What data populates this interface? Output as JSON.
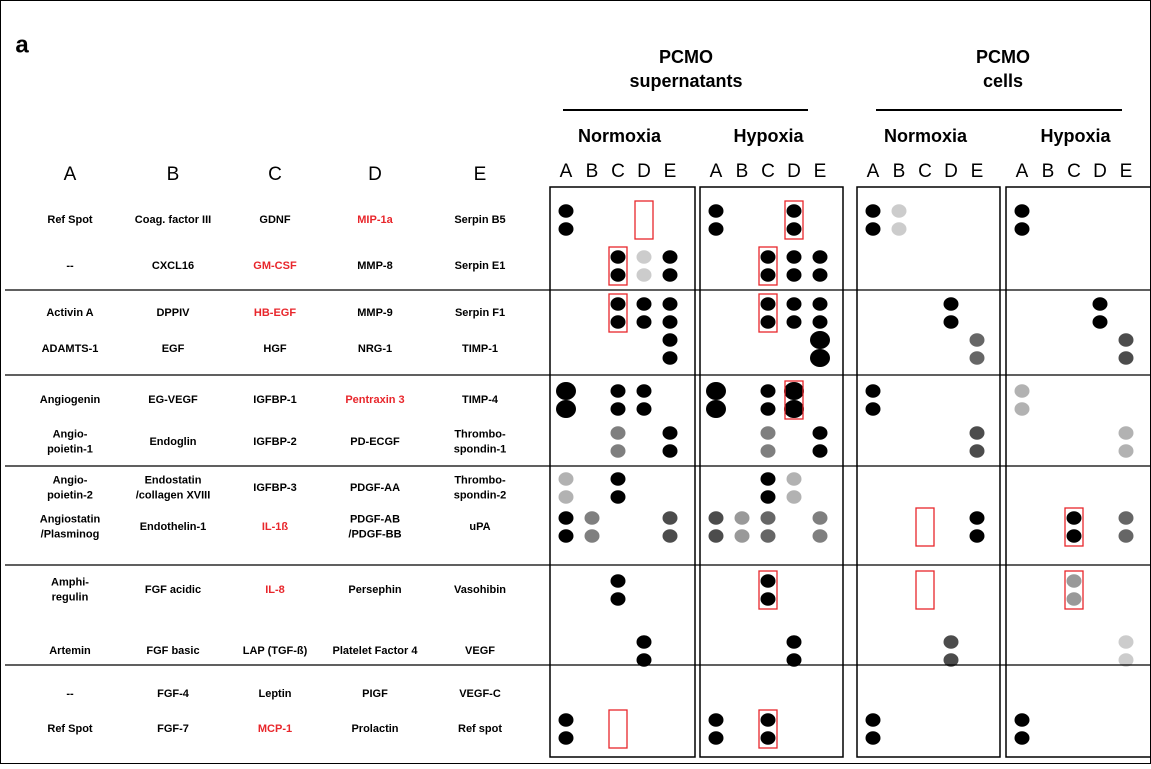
{
  "panel_label": "a",
  "groups": [
    {
      "title_lines": [
        "PCMO",
        "supernatants"
      ],
      "conditions": [
        "Normoxia",
        "Hypoxia"
      ]
    },
    {
      "title_lines": [
        "PCMO",
        "cells"
      ],
      "conditions": [
        "Normoxia",
        "Hypoxia"
      ]
    }
  ],
  "columns": [
    "A",
    "B",
    "C",
    "D",
    "E"
  ],
  "table": {
    "rows": [
      [
        [
          "Ref Spot"
        ],
        [
          "Coag. factor III"
        ],
        [
          "GDNF"
        ],
        [
          "MIP-1a"
        ],
        [
          "Serpin B5"
        ]
      ],
      [
        [
          "--"
        ],
        [
          "CXCL16"
        ],
        [
          "GM-CSF"
        ],
        [
          "MMP-8"
        ],
        [
          "Serpin E1"
        ]
      ],
      [
        [
          "Activin A"
        ],
        [
          "DPPIV"
        ],
        [
          "HB-EGF"
        ],
        [
          "MMP-9"
        ],
        [
          "Serpin F1"
        ]
      ],
      [
        [
          "ADAMTS-1"
        ],
        [
          "EGF"
        ],
        [
          "HGF"
        ],
        [
          "NRG-1"
        ],
        [
          "TIMP-1"
        ]
      ],
      [
        [
          "Angiogenin"
        ],
        [
          "EG-VEGF"
        ],
        [
          "IGFBP-1"
        ],
        [
          "Pentraxin 3"
        ],
        [
          "TIMP-4"
        ]
      ],
      [
        [
          "Angio-",
          "poietin-1"
        ],
        [
          "Endoglin"
        ],
        [
          "IGFBP-2"
        ],
        [
          "PD-ECGF"
        ],
        [
          "Thrombo-",
          "spondin-1"
        ]
      ],
      [
        [
          "Angio-",
          "poietin-2"
        ],
        [
          "Endostatin",
          "/collagen XVIII"
        ],
        [
          "IGFBP-3"
        ],
        [
          "PDGF-AA"
        ],
        [
          "Thrombo-",
          "spondin-2"
        ]
      ],
      [
        [
          "Angiostatin",
          "/Plasminog"
        ],
        [
          "Endothelin-1"
        ],
        [
          "IL-1ß"
        ],
        [
          "PDGF-AB",
          "/PDGF-BB"
        ],
        [
          "uPA"
        ]
      ],
      [
        [
          "Amphi-",
          "regulin"
        ],
        [
          "FGF acidic"
        ],
        [
          "IL-8"
        ],
        [
          "Persephin"
        ],
        [
          "Vasohibin"
        ]
      ],
      [
        [
          "Artemin"
        ],
        [
          "FGF basic"
        ],
        [
          "LAP (TGF-ß)"
        ],
        [
          "Platelet Factor 4"
        ],
        [
          "VEGF"
        ]
      ],
      [
        [
          "--"
        ],
        [
          "FGF-4"
        ],
        [
          "Leptin"
        ],
        [
          "PIGF"
        ],
        [
          "VEGF-C"
        ]
      ],
      [
        [
          "Ref Spot"
        ],
        [
          "FGF-7"
        ],
        [
          "MCP-1"
        ],
        [
          "Prolactin"
        ],
        [
          "Ref spot"
        ]
      ]
    ]
  },
  "highlight_color": "#e8262b",
  "highlighted": [
    [
      0,
      3
    ],
    [
      1,
      2
    ],
    [
      2,
      2
    ],
    [
      4,
      3
    ],
    [
      7,
      2
    ],
    [
      8,
      2
    ],
    [
      11,
      2
    ]
  ]
}
